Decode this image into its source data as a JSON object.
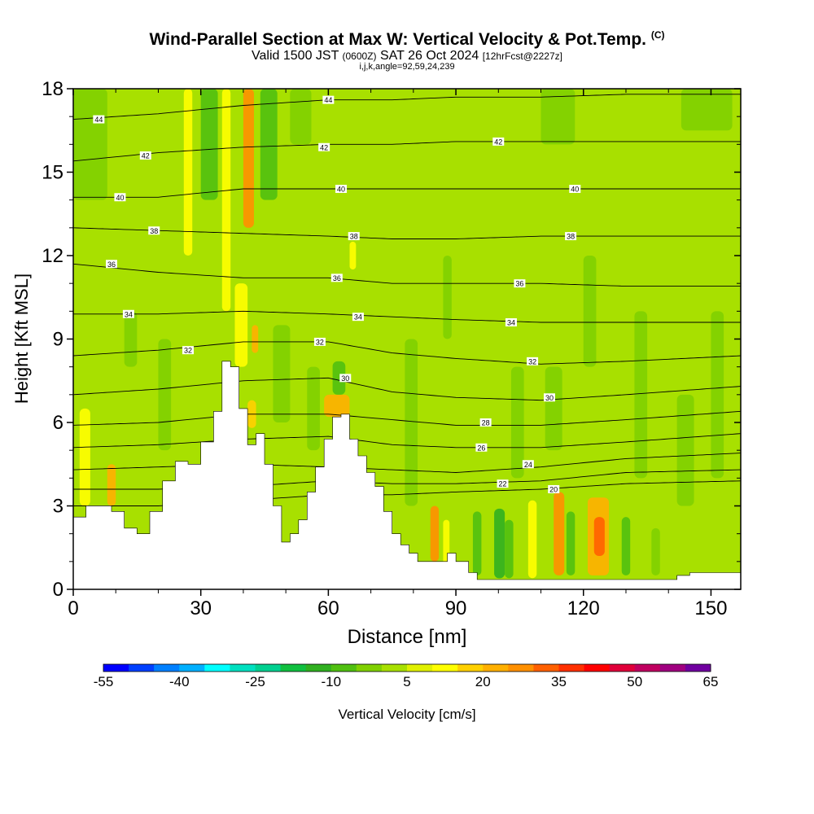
{
  "header": {
    "title": "Wind-Parallel Section at Max W: Vertical Velocity & Pot.Temp.",
    "copyright_mark": "(C)",
    "valid_prefix": "Valid 1500 JST",
    "valid_utc": "(0600Z)",
    "valid_date": "SAT 26 Oct 2024",
    "forecast": "[12hrFcst@2227z]",
    "indices": "i,j,k,angle=92,59,24,239"
  },
  "colorbar": {
    "label": "Vertical Velocity [cm/s]",
    "tick_labels": [
      "-55",
      "-40",
      "-25",
      "-10",
      "5",
      "20",
      "35",
      "50",
      "65"
    ],
    "colors": [
      "#0000ff",
      "#0040ff",
      "#0080ff",
      "#00b0ff",
      "#00ffff",
      "#00e0c0",
      "#00d090",
      "#10c040",
      "#30b020",
      "#50c010",
      "#80d000",
      "#a8e000",
      "#e0f000",
      "#ffff00",
      "#ffd000",
      "#ffb000",
      "#ff9000",
      "#ff6000",
      "#ff3000",
      "#ff0000",
      "#e0003a",
      "#c00060",
      "#a00080",
      "#7000a0"
    ]
  },
  "chart_data": {
    "type": "heatmap",
    "xlabel": "Distance [nm]",
    "ylabel": "Height [Kft MSL]",
    "xlim": [
      0,
      157
    ],
    "ylim": [
      0,
      18
    ],
    "xticks": [
      "0",
      "30",
      "60",
      "90",
      "120",
      "150"
    ],
    "yticks": [
      "0",
      "3",
      "6",
      "9",
      "12",
      "15",
      "18"
    ],
    "terrain": {
      "x": [
        0,
        3,
        6,
        9,
        12,
        15,
        18,
        21,
        24,
        27,
        30,
        33,
        35,
        37,
        39,
        41,
        43,
        45,
        47,
        49,
        51,
        53,
        55,
        57,
        59,
        61,
        63,
        65,
        67,
        69,
        71,
        73,
        75,
        77,
        79,
        81,
        83,
        85,
        88,
        90,
        93,
        95,
        100,
        110,
        120,
        130,
        140,
        142,
        145,
        157
      ],
      "y": [
        2.6,
        3.0,
        3.0,
        2.8,
        2.2,
        2.0,
        2.8,
        3.9,
        4.6,
        4.5,
        5.3,
        6.4,
        8.2,
        8.0,
        6.5,
        5.2,
        5.6,
        4.5,
        3.0,
        1.7,
        2.0,
        2.5,
        3.5,
        4.4,
        5.4,
        6.2,
        6.3,
        5.4,
        4.8,
        4.2,
        3.7,
        2.8,
        2.0,
        1.6,
        1.3,
        1.0,
        1.0,
        1.0,
        1.3,
        1.0,
        0.6,
        0.35,
        0.35,
        0.35,
        0.35,
        0.35,
        0.35,
        0.5,
        0.6,
        0.6
      ]
    },
    "isentropes": [
      {
        "theta": 20,
        "x": [
          0,
          20,
          40,
          60,
          75,
          90,
          110,
          130,
          157
        ],
        "y": [
          3.0,
          3.0,
          3.2,
          3.4,
          3.4,
          3.5,
          3.6,
          3.8,
          3.9
        ],
        "labels": [
          [
            113,
            3.6
          ]
        ]
      },
      {
        "theta": 22,
        "x": [
          0,
          20,
          40,
          60,
          75,
          90,
          110,
          130,
          157
        ],
        "y": [
          3.6,
          3.6,
          3.7,
          3.9,
          3.8,
          3.8,
          3.9,
          4.2,
          4.3
        ],
        "labels": [
          [
            101,
            3.8
          ]
        ]
      },
      {
        "theta": 24,
        "x": [
          0,
          20,
          40,
          60,
          75,
          90,
          110,
          130,
          157
        ],
        "y": [
          4.3,
          4.4,
          4.5,
          4.4,
          4.3,
          4.2,
          4.4,
          4.7,
          4.9
        ],
        "labels": [
          [
            107,
            4.5
          ]
        ]
      },
      {
        "theta": 26,
        "x": [
          0,
          20,
          40,
          60,
          75,
          90,
          110,
          130,
          157
        ],
        "y": [
          5.1,
          5.2,
          5.4,
          5.5,
          5.2,
          5.1,
          5.1,
          5.3,
          5.6
        ],
        "labels": [
          [
            96,
            5.1
          ]
        ]
      },
      {
        "theta": 28,
        "x": [
          0,
          20,
          40,
          60,
          75,
          90,
          110,
          130,
          157
        ],
        "y": [
          5.9,
          6.0,
          6.3,
          6.3,
          6.1,
          5.9,
          5.9,
          6.1,
          6.4
        ],
        "labels": [
          [
            97,
            6.0
          ]
        ]
      },
      {
        "theta": 30,
        "x": [
          0,
          20,
          40,
          60,
          75,
          90,
          110,
          130,
          157
        ],
        "y": [
          7.0,
          7.2,
          7.5,
          7.6,
          7.1,
          6.9,
          6.8,
          7.0,
          7.3
        ],
        "labels": [
          [
            64,
            7.6
          ],
          [
            112,
            6.9
          ]
        ]
      },
      {
        "theta": 32,
        "x": [
          0,
          20,
          40,
          60,
          75,
          90,
          110,
          130,
          157
        ],
        "y": [
          8.4,
          8.6,
          8.9,
          8.9,
          8.5,
          8.3,
          8.1,
          8.2,
          8.4
        ],
        "labels": [
          [
            27,
            8.6
          ],
          [
            58,
            8.9
          ],
          [
            108,
            8.2
          ]
        ]
      },
      {
        "theta": 34,
        "x": [
          0,
          20,
          40,
          60,
          75,
          90,
          110,
          130,
          157
        ],
        "y": [
          9.9,
          9.9,
          10.0,
          9.9,
          9.8,
          9.7,
          9.6,
          9.6,
          9.6
        ],
        "labels": [
          [
            13,
            9.9
          ],
          [
            67,
            9.8
          ],
          [
            103,
            9.6
          ]
        ]
      },
      {
        "theta": 36,
        "x": [
          0,
          20,
          40,
          60,
          75,
          90,
          110,
          130,
          157
        ],
        "y": [
          11.7,
          11.4,
          11.2,
          11.2,
          11.0,
          11.0,
          11.0,
          10.9,
          10.9
        ],
        "labels": [
          [
            9,
            11.7
          ],
          [
            62,
            11.2
          ],
          [
            105,
            11.0
          ]
        ]
      },
      {
        "theta": 38,
        "x": [
          0,
          20,
          40,
          60,
          75,
          90,
          110,
          130,
          157
        ],
        "y": [
          13.0,
          12.9,
          12.8,
          12.7,
          12.6,
          12.6,
          12.7,
          12.7,
          12.7
        ],
        "labels": [
          [
            19,
            12.9
          ],
          [
            66,
            12.7
          ],
          [
            117,
            12.7
          ]
        ]
      },
      {
        "theta": 40,
        "x": [
          0,
          20,
          40,
          60,
          75,
          90,
          110,
          130,
          157
        ],
        "y": [
          14.1,
          14.1,
          14.4,
          14.4,
          14.4,
          14.4,
          14.4,
          14.4,
          14.4
        ],
        "labels": [
          [
            11,
            14.1
          ],
          [
            63,
            14.4
          ],
          [
            118,
            14.4
          ]
        ]
      },
      {
        "theta": 42,
        "x": [
          0,
          20,
          40,
          60,
          75,
          90,
          110,
          130,
          157
        ],
        "y": [
          15.4,
          15.7,
          15.9,
          16.0,
          16.0,
          16.1,
          16.1,
          16.1,
          16.1
        ],
        "labels": [
          [
            17,
            15.6
          ],
          [
            59,
            15.9
          ],
          [
            100,
            16.1
          ]
        ]
      },
      {
        "theta": 44,
        "x": [
          0,
          20,
          40,
          60,
          75,
          90,
          110,
          130,
          157
        ],
        "y": [
          16.9,
          17.1,
          17.4,
          17.6,
          17.6,
          17.7,
          17.7,
          17.8,
          17.8
        ],
        "labels": [
          [
            6,
            16.9
          ],
          [
            60,
            17.6
          ]
        ]
      }
    ],
    "bands": [
      {
        "x": 1.5,
        "w": 2.5,
        "ymin": 3.0,
        "ymax": 6.5,
        "w_cms": 12
      },
      {
        "x": 8,
        "w": 2,
        "ymin": 3.0,
        "ymax": 4.5,
        "w_cms": 22
      },
      {
        "x": 26,
        "w": 2,
        "ymin": 12,
        "ymax": 18,
        "w_cms": 12
      },
      {
        "x": 35,
        "w": 2,
        "ymin": 10,
        "ymax": 18,
        "w_cms": 10
      },
      {
        "x": 40,
        "w": 2.5,
        "ymin": 13,
        "ymax": 18,
        "w_cms": 25
      },
      {
        "x": 38,
        "w": 3,
        "ymin": 8,
        "ymax": 11,
        "w_cms": 10
      },
      {
        "x": 42,
        "w": 1.5,
        "ymin": 8.5,
        "ymax": 9.5,
        "w_cms": 20
      },
      {
        "x": 41,
        "w": 2,
        "ymin": 5.8,
        "ymax": 6.8,
        "w_cms": 15
      },
      {
        "x": 59,
        "w": 6,
        "ymin": 6.2,
        "ymax": 7.0,
        "w_cms": 22
      },
      {
        "x": 65,
        "w": 1.5,
        "ymin": 11.5,
        "ymax": 12.5,
        "w_cms": 12
      },
      {
        "x": 84,
        "w": 2,
        "ymin": 1.0,
        "ymax": 3.0,
        "w_cms": 25
      },
      {
        "x": 87,
        "w": 1.5,
        "ymin": 0.8,
        "ymax": 2.5,
        "w_cms": 12
      },
      {
        "x": 94,
        "w": 2,
        "ymin": 0.5,
        "ymax": 2.8,
        "w_cms": -8
      },
      {
        "x": 99,
        "w": 2.5,
        "ymin": 0.4,
        "ymax": 2.9,
        "w_cms": -12
      },
      {
        "x": 101.5,
        "w": 2,
        "ymin": 0.4,
        "ymax": 2.5,
        "w_cms": -8
      },
      {
        "x": 107,
        "w": 2,
        "ymin": 0.4,
        "ymax": 3.2,
        "w_cms": 10
      },
      {
        "x": 113,
        "w": 2.5,
        "ymin": 0.5,
        "ymax": 3.5,
        "w_cms": 28
      },
      {
        "x": 116,
        "w": 2,
        "ymin": 0.5,
        "ymax": 2.8,
        "w_cms": -8
      },
      {
        "x": 121,
        "w": 5,
        "ymin": 0.5,
        "ymax": 3.3,
        "w_cms": 20
      },
      {
        "x": 122.5,
        "w": 2.5,
        "ymin": 1.2,
        "ymax": 2.6,
        "w_cms": 30
      },
      {
        "x": 129,
        "w": 2,
        "ymin": 0.5,
        "ymax": 2.6,
        "w_cms": -8
      },
      {
        "x": 136,
        "w": 2,
        "ymin": 0.5,
        "ymax": 2.2,
        "w_cms": -5
      },
      {
        "x": 12,
        "w": 3,
        "ymin": 8,
        "ymax": 10,
        "w_cms": -5
      },
      {
        "x": 20,
        "w": 3,
        "ymin": 5,
        "ymax": 9,
        "w_cms": -5
      },
      {
        "x": 47,
        "w": 4,
        "ymin": 6,
        "ymax": 9.5,
        "w_cms": -5
      },
      {
        "x": 55,
        "w": 3,
        "ymin": 5,
        "ymax": 8,
        "w_cms": -5
      },
      {
        "x": 61,
        "w": 3,
        "ymin": 7.0,
        "ymax": 8.2,
        "w_cms": -10
      },
      {
        "x": 78,
        "w": 3,
        "ymin": 3,
        "ymax": 9,
        "w_cms": -5
      },
      {
        "x": 87,
        "w": 2,
        "ymin": 9,
        "ymax": 12,
        "w_cms": -5
      },
      {
        "x": 103,
        "w": 3,
        "ymin": 4,
        "ymax": 8,
        "w_cms": -5
      },
      {
        "x": 111,
        "w": 4,
        "ymin": 5,
        "ymax": 8,
        "w_cms": -5
      },
      {
        "x": 120,
        "w": 3,
        "ymin": 8,
        "ymax": 12,
        "w_cms": -5
      },
      {
        "x": 132,
        "w": 3,
        "ymin": 4,
        "ymax": 10,
        "w_cms": -5
      },
      {
        "x": 142,
        "w": 4,
        "ymin": 3,
        "ymax": 7,
        "w_cms": -5
      },
      {
        "x": 150,
        "w": 3,
        "ymin": 4,
        "ymax": 10,
        "w_cms": -5
      },
      {
        "x": 30,
        "w": 4,
        "ymin": 14,
        "ymax": 18,
        "w_cms": -8
      },
      {
        "x": 44,
        "w": 4,
        "ymin": 14,
        "ymax": 18,
        "w_cms": -10
      },
      {
        "x": 51,
        "w": 5,
        "ymin": 16,
        "ymax": 18,
        "w_cms": -5
      },
      {
        "x": 110,
        "w": 8,
        "ymin": 16,
        "ymax": 18,
        "w_cms": -5
      },
      {
        "x": 143,
        "w": 12,
        "ymin": 16.5,
        "ymax": 18,
        "w_cms": -5
      },
      {
        "x": 0,
        "w": 8,
        "ymin": 14,
        "ymax": 18,
        "w_cms": -5
      }
    ]
  }
}
